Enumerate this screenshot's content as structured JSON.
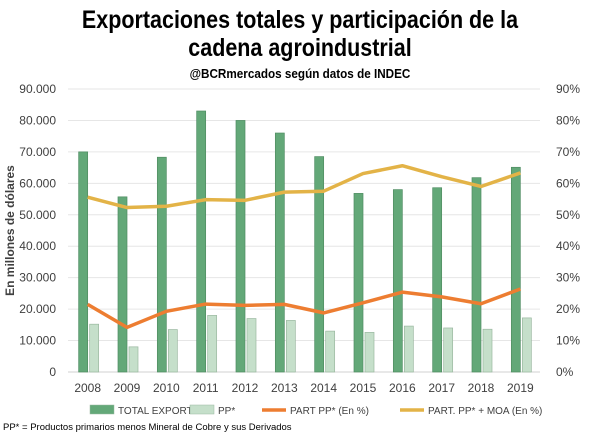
{
  "title_line1": "Exportaciones totales y participación de la",
  "title_line2": "cadena agroindustrial",
  "subtitle": "@BCRmercados según datos de INDEC",
  "footnote": "PP* = Productos primarios menos Mineral de Cobre y sus Derivados",
  "chart_data": {
    "type": "bar+line",
    "categories": [
      "2008",
      "2009",
      "2010",
      "2011",
      "2012",
      "2013",
      "2014",
      "2015",
      "2016",
      "2017",
      "2018",
      "2019"
    ],
    "ylabel": "En millones de dólares",
    "ylim": [
      0,
      90000
    ],
    "y_ticks": [
      "0",
      "10.000",
      "20.000",
      "30.000",
      "40.000",
      "50.000",
      "60.000",
      "70.000",
      "80.000",
      "90.000"
    ],
    "y2lim": [
      0,
      90
    ],
    "y2_ticks": [
      "0%",
      "10%",
      "20%",
      "30%",
      "40%",
      "50%",
      "60%",
      "70%",
      "80%",
      "90%"
    ],
    "grid": true,
    "legend_position": "bottom",
    "series": [
      {
        "name": "TOTAL EXPORT.",
        "type": "bar",
        "axis": "left",
        "color": "#63a878",
        "values": [
          70000,
          55700,
          68300,
          83000,
          80000,
          76000,
          68500,
          56800,
          58000,
          58600,
          61800,
          65100
        ]
      },
      {
        "name": "PP*",
        "type": "bar",
        "axis": "left",
        "color": "#c5dfca",
        "values": [
          15200,
          8000,
          13500,
          18000,
          17000,
          16400,
          13000,
          12600,
          14600,
          14000,
          13600,
          17200
        ]
      },
      {
        "name": "PART PP* (En %)",
        "type": "line",
        "axis": "right",
        "color": "#ed7d31",
        "values": [
          21.5,
          14.2,
          19.3,
          21.6,
          21.2,
          21.5,
          18.8,
          22.0,
          25.4,
          23.9,
          21.7,
          26.4
        ]
      },
      {
        "name": "PART. PP* + MOA (En %)",
        "type": "line",
        "axis": "right",
        "color": "#e3b347",
        "values": [
          55.6,
          52.3,
          52.7,
          54.8,
          54.6,
          57.2,
          57.5,
          63.1,
          65.6,
          62.1,
          59.0,
          63.3
        ]
      }
    ]
  }
}
